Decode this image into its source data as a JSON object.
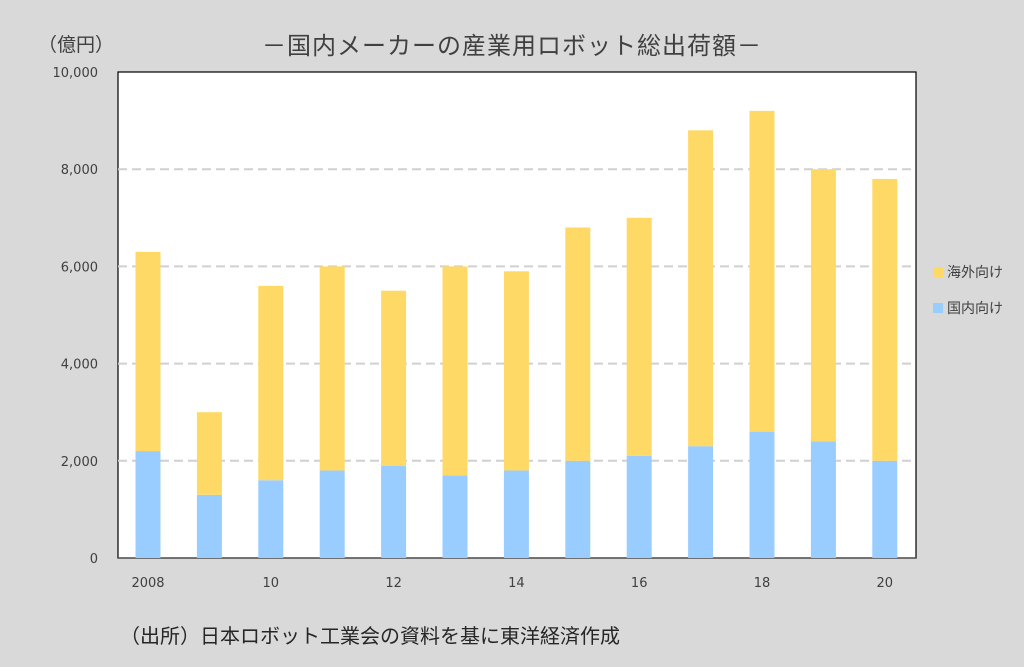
{
  "unit_label": "（億円）",
  "source_note": "（出所）日本ロボット工業会の資料を基に東洋経済作成",
  "colors": {
    "domestic": "#99ccff",
    "overseas": "#ffd966",
    "grid": "#d0d0d0",
    "background": "#d9d9d9"
  },
  "chart_data": {
    "type": "bar",
    "stacked": true,
    "title": "－国内メーカーの産業用ロボット総出荷額－",
    "ylabel": "（億円）",
    "ylim": [
      0,
      10000
    ],
    "yticks": [
      "0",
      "2,000",
      "4,000",
      "6,000",
      "8,000",
      "10,000"
    ],
    "ytick_values": [
      0,
      2000,
      4000,
      6000,
      8000,
      10000
    ],
    "categories": [
      "2008",
      "2009",
      "2010",
      "2011",
      "2012",
      "2013",
      "2014",
      "2015",
      "2016",
      "2017",
      "2018",
      "2019",
      "2020"
    ],
    "xtick_labels": [
      "2008",
      "",
      "10",
      "",
      "12",
      "",
      "14",
      "",
      "16",
      "",
      "18",
      "",
      "20"
    ],
    "legend_position": "right",
    "grid": "horizontal-dashed",
    "series": [
      {
        "name": "国内向け",
        "color": "#99ccff",
        "values": [
          2200,
          1300,
          1600,
          1800,
          1900,
          1700,
          1800,
          2000,
          2100,
          2300,
          2600,
          2400,
          2000
        ]
      },
      {
        "name": "海外向け",
        "color": "#ffd966",
        "values": [
          4100,
          1700,
          4000,
          4200,
          3600,
          4300,
          4100,
          4800,
          4900,
          6500,
          6600,
          5600,
          5800
        ]
      }
    ],
    "legend": [
      "海外向け",
      "国内向け"
    ]
  }
}
